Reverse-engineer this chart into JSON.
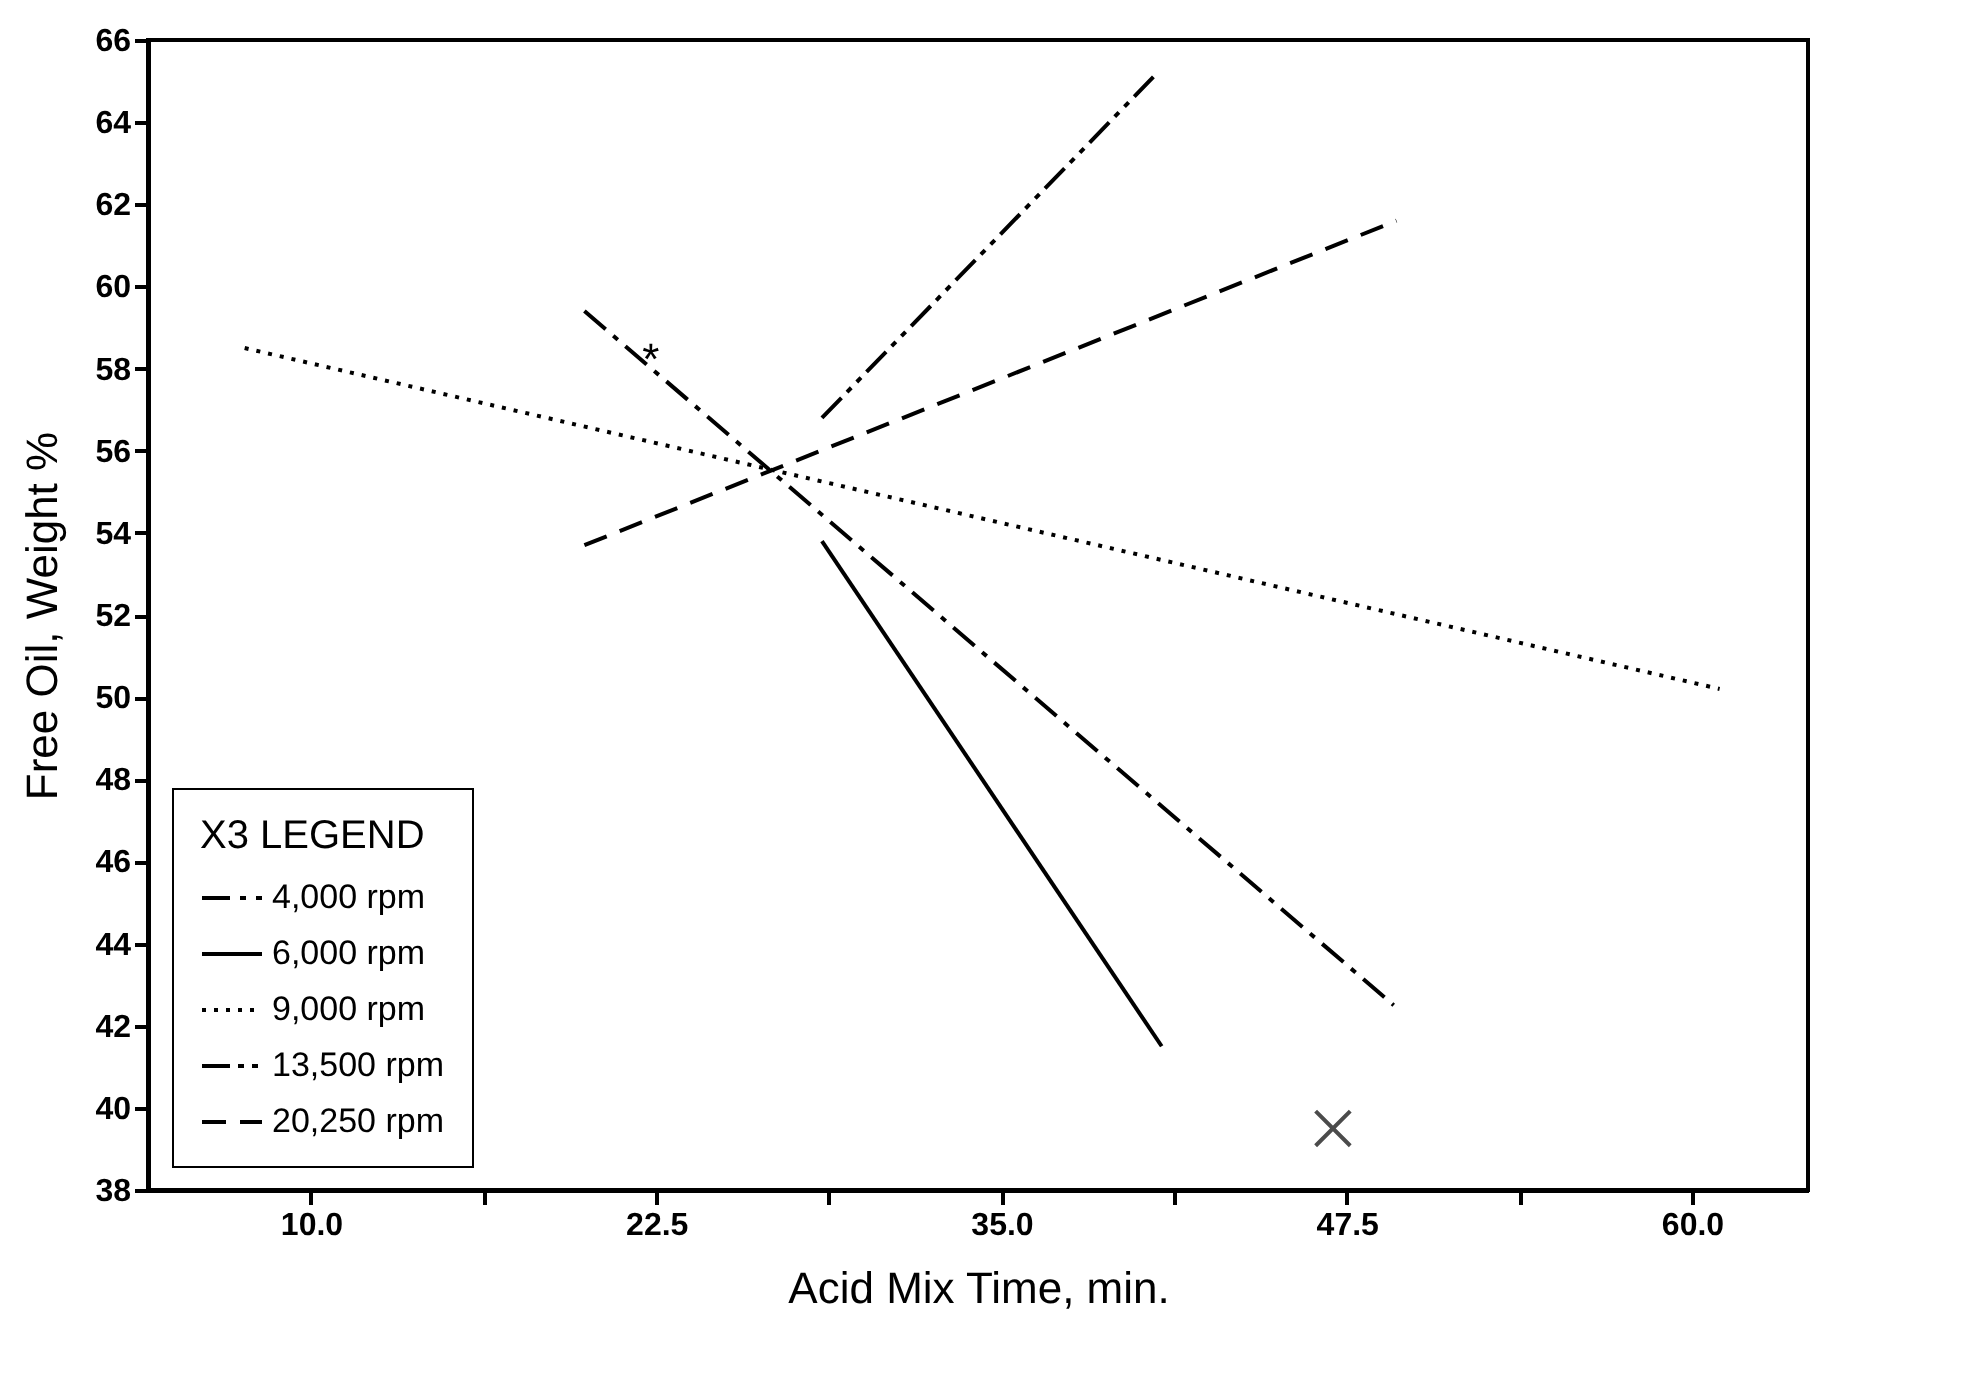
{
  "chart_data": {
    "type": "line",
    "xlabel": "Acid Mix Time, min.",
    "ylabel": "Free Oil, Weight %",
    "legend_title": "X3 LEGEND",
    "xlim": [
      4.1,
      64.2
    ],
    "xticks": [
      {
        "value": 10,
        "label": "10.0"
      },
      {
        "value": 16.25,
        "label": null
      },
      {
        "value": 22.5,
        "label": "22.5"
      },
      {
        "value": 28.75,
        "label": null
      },
      {
        "value": 35,
        "label": "35.0"
      },
      {
        "value": 41.25,
        "label": null
      },
      {
        "value": 47.5,
        "label": "47.5"
      },
      {
        "value": 53.75,
        "label": null
      },
      {
        "value": 60,
        "label": "60.0"
      }
    ],
    "ylim": [
      38,
      66
    ],
    "yticks": [
      38,
      40,
      42,
      44,
      46,
      48,
      50,
      52,
      54,
      56,
      58,
      60,
      62,
      64,
      66
    ],
    "grid": false,
    "legend": "bottom left",
    "series": [
      {
        "name": "4,000 rpm",
        "color": "#000000",
        "line_style": "dashdot",
        "x": [
          19.9,
          49.2
        ],
        "values": [
          59.4,
          42.5
        ]
      },
      {
        "name": "6,000 rpm",
        "color": "#000000",
        "line_style": "solid",
        "x": [
          28.5,
          40.8
        ],
        "values": [
          53.8,
          41.5
        ]
      },
      {
        "name": "9,000 rpm",
        "color": "#000000",
        "line_style": "dotted",
        "x": [
          7.6,
          61.0
        ],
        "values": [
          58.5,
          50.2
        ]
      },
      {
        "name": "13,500 rpm",
        "color": "#000000",
        "line_style": "dashdotdot",
        "x": [
          28.5,
          40.5
        ],
        "values": [
          56.8,
          65.1
        ]
      },
      {
        "name": "20,250 rpm",
        "color": "#000000",
        "line_style": "dashed",
        "x": [
          19.9,
          49.3
        ],
        "values": [
          53.7,
          61.6
        ]
      },
      {
        "type": "scatter",
        "marker": "cross",
        "color": "#000000",
        "x": [
          47.0
        ],
        "values": [
          39.5
        ]
      }
    ],
    "annotations": [
      {
        "text": "*",
        "x": 22.3,
        "y": 58.2
      }
    ]
  }
}
